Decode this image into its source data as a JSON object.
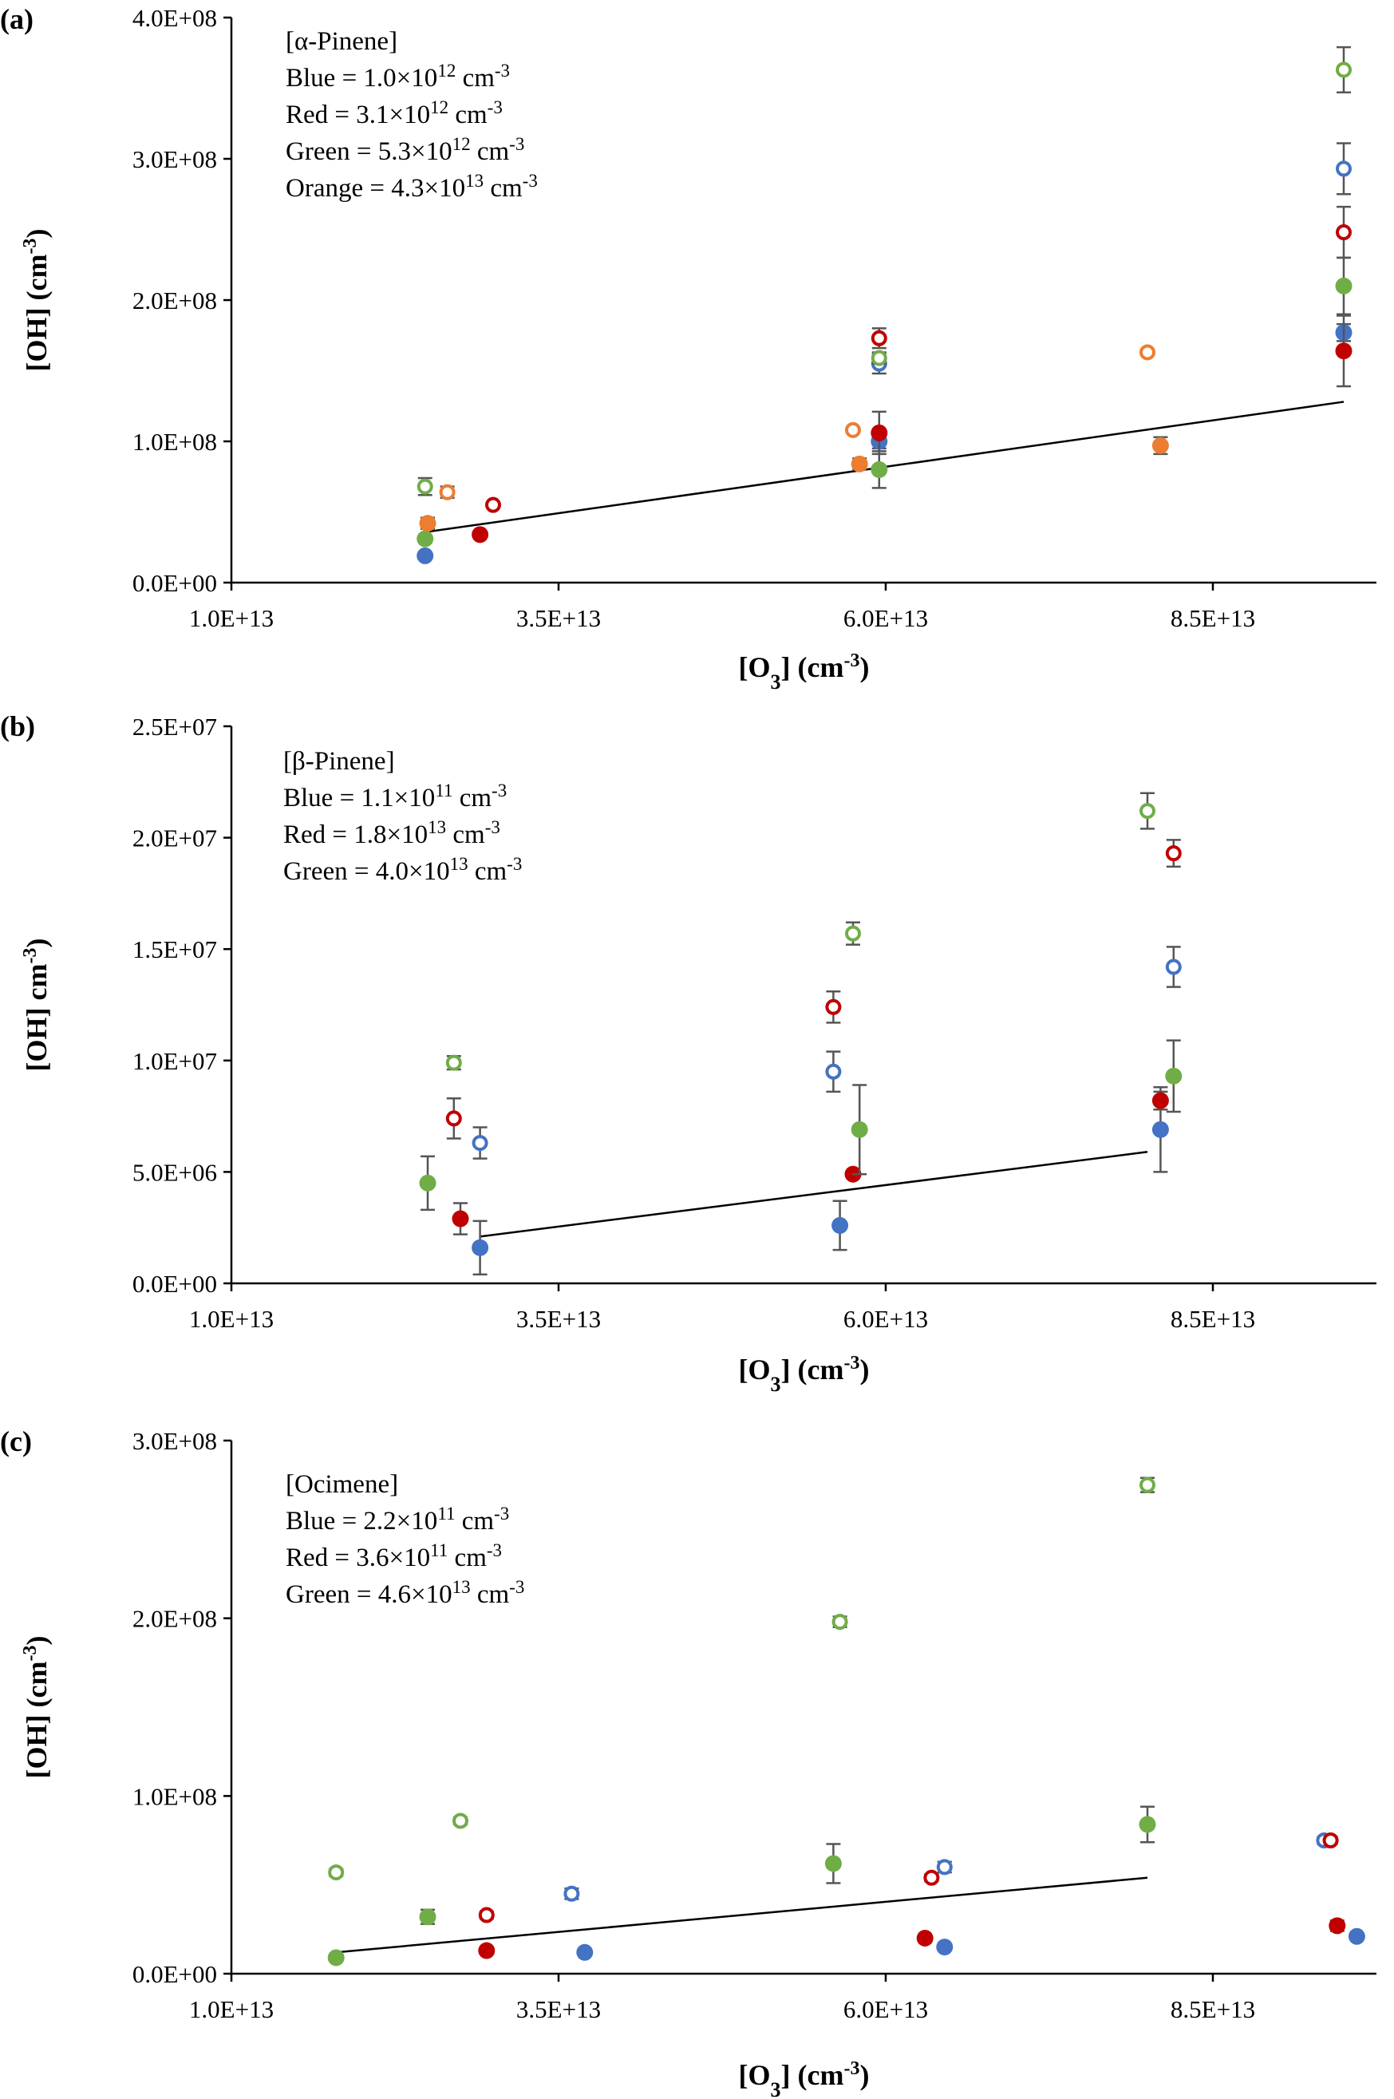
{
  "chart_data": [
    {
      "type": "scatter",
      "panel_label": "(a)",
      "xlabel": "[O3] (cm-3)",
      "xlabel_parts": {
        "pre": "[O",
        "sub": "3",
        "post": "] (cm",
        "sup": "-3",
        "end": ")"
      },
      "ylabel": "[OH] (cm-3)",
      "ylabel_parts": {
        "pre": "[OH] (cm",
        "sup": "-3",
        "end": ")"
      },
      "xlim": [
        10000000000000.0,
        97500000000000.0
      ],
      "ylim": [
        0,
        400000000.0
      ],
      "xticks": [
        10000000000000.0,
        35000000000000.0,
        60000000000000.0,
        85000000000000.0
      ],
      "xtick_labels": [
        "1.0E+13",
        "3.5E+13",
        "6.0E+13",
        "8.5E+13"
      ],
      "yticks": [
        0,
        100000000.0,
        200000000.0,
        300000000.0,
        400000000.0
      ],
      "ytick_labels": [
        "0.0E+00",
        "1.0E+08",
        "2.0E+08",
        "3.0E+08",
        "4.0E+08"
      ],
      "grid": false,
      "legend_text": [
        {
          "text": "[α-Pinene]"
        },
        {
          "pre": "Blue = 1.0×10",
          "sup": "12",
          "post": " cm",
          "sup2": "-3"
        },
        {
          "pre": "Red = 3.1×10",
          "sup": "12",
          "post": " cm",
          "sup2": "-3"
        },
        {
          "pre": "Green = 5.3×10",
          "sup": "12",
          "post": " cm",
          "sup2": "-3"
        },
        {
          "pre": "Orange = 4.3×10",
          "sup": "13",
          "post": " cm",
          "sup2": "-3"
        }
      ],
      "fit_line": {
        "x": [
          25000000000000.0,
          95000000000000.0
        ],
        "y": [
          36000000.0,
          128000000.0
        ]
      },
      "series": [
        {
          "color": "#4472c4",
          "marker": "open",
          "x": [
            59500000000000.0,
            95000000000000.0
          ],
          "y": [
            155000000.0,
            293000000.0
          ],
          "err": [
            7000000.0,
            18000000.0
          ]
        },
        {
          "color": "#4472c4",
          "marker": "filled",
          "x": [
            24800000000000.0,
            59500000000000.0,
            95000000000000.0
          ],
          "y": [
            19000000.0,
            100000000.0,
            177000000.0
          ],
          "err": [
            1000000.0,
            5000000.0,
            6000000.0
          ]
        },
        {
          "color": "#c00000",
          "marker": "open",
          "x": [
            30000000000000.0,
            59500000000000.0,
            95000000000000.0
          ],
          "y": [
            55000000.0,
            173000000.0,
            248000000.0
          ],
          "err": [
            1500000.0,
            7000000.0,
            18000000.0
          ]
        },
        {
          "color": "#c00000",
          "marker": "filled",
          "x": [
            29000000000000.0,
            59500000000000.0,
            95000000000000.0
          ],
          "y": [
            34000000.0,
            106000000.0,
            164000000.0
          ],
          "err": [
            2000000.0,
            15000000.0,
            25000000.0
          ]
        },
        {
          "color": "#70ad47",
          "marker": "open",
          "x": [
            24800000000000.0,
            59500000000000.0,
            95000000000000.0
          ],
          "y": [
            68000000.0,
            159000000.0,
            363000000.0
          ],
          "err": [
            6000000.0,
            4000000.0,
            16000000.0
          ]
        },
        {
          "color": "#70ad47",
          "marker": "filled",
          "x": [
            24800000000000.0,
            59500000000000.0,
            95000000000000.0
          ],
          "y": [
            31000000.0,
            80000000.0,
            210000000.0
          ],
          "err": [
            1000000.0,
            13000000.0,
            20000000.0
          ]
        },
        {
          "color": "#ed7d31",
          "marker": "open",
          "x": [
            26500000000000.0,
            57500000000000.0,
            80000000000000.0
          ],
          "y": [
            64000000.0,
            108000000.0,
            163000000.0
          ],
          "err": [
            4000000.0,
            1000000.0,
            1000000.0
          ]
        },
        {
          "color": "#ed7d31",
          "marker": "filled",
          "x": [
            25000000000000.0,
            58000000000000.0,
            81000000000000.0
          ],
          "y": [
            42000000.0,
            84000000.0,
            97000000.0
          ],
          "err": [
            4000000.0,
            4000000.0,
            6000000.0
          ]
        }
      ]
    },
    {
      "type": "scatter",
      "panel_label": "(b)",
      "xlabel": "[O3] (cm-3)",
      "xlabel_parts": {
        "pre": "[O",
        "sub": "3",
        "post": "] (cm",
        "sup": "-3",
        "end": ")"
      },
      "ylabel": "[OH] cm-3)",
      "ylabel_parts": {
        "pre": "[OH] cm",
        "sup": "-3",
        "end": ")"
      },
      "xlim": [
        10000000000000.0,
        97500000000000.0
      ],
      "ylim": [
        0,
        25000000.0
      ],
      "xticks": [
        10000000000000.0,
        35000000000000.0,
        60000000000000.0,
        85000000000000.0
      ],
      "xtick_labels": [
        "1.0E+13",
        "3.5E+13",
        "6.0E+13",
        "8.5E+13"
      ],
      "yticks": [
        0,
        5000000.0,
        10000000.0,
        15000000.0,
        20000000.0,
        25000000.0
      ],
      "ytick_labels": [
        "0.0E+00",
        "5.0E+06",
        "1.0E+07",
        "1.5E+07",
        "2.0E+07",
        "2.5E+07"
      ],
      "grid": false,
      "legend_text": [
        {
          "text": "[β-Pinene]"
        },
        {
          "pre": "Blue = 1.1×10",
          "sup": "11",
          "post": " cm",
          "sup2": "-3"
        },
        {
          "pre": "Red = 1.8×10",
          "sup": "13",
          "post": " cm",
          "sup2": "-3"
        },
        {
          "pre": "Green = 4.0×10",
          "sup": "13",
          "post": " cm",
          "sup2": "-3"
        }
      ],
      "fit_line": {
        "x": [
          29000000000000.0,
          80000000000000.0
        ],
        "y": [
          2100000.0,
          5900000.0
        ]
      },
      "series": [
        {
          "color": "#4472c4",
          "marker": "open",
          "x": [
            29000000000000.0,
            56000000000000.0,
            82000000000000.0
          ],
          "y": [
            6300000.0,
            9500000.0,
            14200000.0
          ],
          "err": [
            700000.0,
            900000.0,
            900000.0
          ]
        },
        {
          "color": "#4472c4",
          "marker": "filled",
          "x": [
            29000000000000.0,
            56500000000000.0,
            81000000000000.0
          ],
          "y": [
            1600000.0,
            2600000.0,
            6900000.0
          ],
          "err": [
            1200000.0,
            1100000.0,
            1900000.0
          ]
        },
        {
          "color": "#c00000",
          "marker": "open",
          "x": [
            27000000000000.0,
            56000000000000.0,
            82000000000000.0
          ],
          "y": [
            7400000.0,
            12400000.0,
            19300000.0
          ],
          "err": [
            900000.0,
            700000.0,
            600000.0
          ]
        },
        {
          "color": "#c00000",
          "marker": "filled",
          "x": [
            27500000000000.0,
            57500000000000.0,
            81000000000000.0
          ],
          "y": [
            2900000.0,
            4900000.0,
            8200000.0
          ],
          "err": [
            700000.0,
            100000.0,
            400000.0
          ]
        },
        {
          "color": "#70ad47",
          "marker": "open",
          "x": [
            27000000000000.0,
            57500000000000.0,
            80000000000000.0
          ],
          "y": [
            9900000.0,
            15700000.0,
            21200000.0
          ],
          "err": [
            300000.0,
            500000.0,
            800000.0
          ]
        },
        {
          "color": "#70ad47",
          "marker": "filled",
          "x": [
            25000000000000.0,
            58000000000000.0,
            82000000000000.0
          ],
          "y": [
            4500000.0,
            6900000.0,
            9300000.0
          ],
          "err": [
            1200000.0,
            2000000.0,
            1600000.0
          ]
        }
      ]
    },
    {
      "type": "scatter",
      "panel_label": "(c)",
      "xlabel": "[O3] (cm-3)",
      "xlabel_parts": {
        "pre": "[O",
        "sub": "3",
        "post": "] (cm",
        "sup": "-3",
        "end": ")"
      },
      "ylabel": "[OH] (cm-3)",
      "ylabel_parts": {
        "pre": "[OH] (cm",
        "sup": "-3",
        "end": ")"
      },
      "xlim": [
        10000000000000.0,
        97500000000000.0
      ],
      "ylim": [
        0,
        300000000.0
      ],
      "xticks": [
        10000000000000.0,
        35000000000000.0,
        60000000000000.0,
        85000000000000.0
      ],
      "xtick_labels": [
        "1.0E+13",
        "3.5E+13",
        "6.0E+13",
        "8.5E+13"
      ],
      "yticks": [
        0,
        100000000.0,
        200000000.0,
        300000000.0
      ],
      "ytick_labels": [
        "0.0E+00",
        "1.0E+08",
        "2.0E+08",
        "3.0E+08"
      ],
      "grid": false,
      "legend_text": [
        {
          "text": "[Ocimene]"
        },
        {
          "pre": "Blue = 2.2×10",
          "sup": "11",
          "post": " cm",
          "sup2": "-3"
        },
        {
          "pre": "Red = 3.6×10",
          "sup": "11",
          "post": " cm",
          "sup2": "-3"
        },
        {
          "pre": "Green = 4.6×10",
          "sup": "13",
          "post": " cm",
          "sup2": "-3"
        }
      ],
      "fit_line": {
        "x": [
          18000000000000.0,
          80000000000000.0
        ],
        "y": [
          12000000.0,
          54000000.0
        ]
      },
      "series": [
        {
          "color": "#4472c4",
          "marker": "open",
          "x": [
            36000000000000.0,
            64500000000000.0,
            93500000000000.0
          ],
          "y": [
            45000000.0,
            60000000.0,
            75000000.0
          ],
          "err": [
            3000000.0,
            3000000.0,
            2000000.0
          ]
        },
        {
          "color": "#4472c4",
          "marker": "filled",
          "x": [
            37000000000000.0,
            64500000000000.0,
            96000000000000.0
          ],
          "y": [
            12000000.0,
            15000000.0,
            21000000.0
          ],
          "err": [
            1000000.0,
            1000000.0,
            1000000.0
          ]
        },
        {
          "color": "#c00000",
          "marker": "open",
          "x": [
            29500000000000.0,
            63500000000000.0,
            94000000000000.0
          ],
          "y": [
            33000000.0,
            54000000.0,
            75000000.0
          ],
          "err": [
            2000000.0,
            2000000.0,
            2000000.0
          ]
        },
        {
          "color": "#c00000",
          "marker": "filled",
          "x": [
            29500000000000.0,
            63000000000000.0,
            94500000000000.0
          ],
          "y": [
            13000000.0,
            20000000.0,
            27000000.0
          ],
          "err": [
            1000000.0,
            1000000.0,
            3000000.0
          ]
        },
        {
          "color": "#70ad47",
          "marker": "open",
          "x": [
            18000000000000.0,
            27500000000000.0,
            56500000000000.0,
            80000000000000.0
          ],
          "y": [
            57000000.0,
            86000000.0,
            198000000.0,
            275000000.0
          ],
          "err": [
            2000000.0,
            2000000.0,
            3000000.0,
            4000000.0
          ]
        },
        {
          "color": "#70ad47",
          "marker": "filled",
          "x": [
            18000000000000.0,
            25000000000000.0,
            56000000000000.0,
            80000000000000.0
          ],
          "y": [
            9000000.0,
            32000000.0,
            62000000.0,
            84000000.0
          ],
          "err": [
            1000000.0,
            4000000.0,
            11000000.0,
            10000000.0
          ]
        }
      ]
    }
  ]
}
